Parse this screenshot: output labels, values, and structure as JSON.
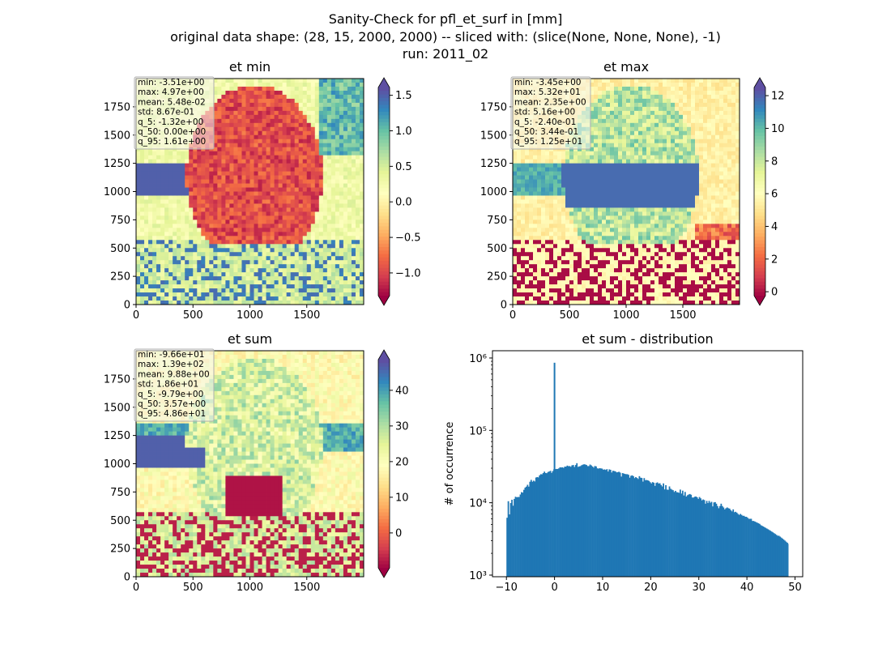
{
  "figure": {
    "suptitle_line1": "Sanity-Check for pfl_et_surf in [mm]",
    "suptitle_line2": "original data shape: (28, 15, 2000, 2000) -- sliced with: (slice(None, None, None), -1)",
    "suptitle_line3": "run: 2011_02"
  },
  "chart_data": [
    {
      "type": "heatmap",
      "title": "et min",
      "x_ticks": [
        0,
        500,
        1000,
        1500
      ],
      "y_ticks": [
        0,
        250,
        500,
        750,
        1000,
        1250,
        1500,
        1750
      ],
      "xlim": [
        0,
        2000
      ],
      "ylim": [
        0,
        2000
      ],
      "colormap": "Spectral",
      "colorbar": {
        "min": -1.32,
        "max": 1.61,
        "ticks": [
          "1.5",
          "1.0",
          "0.5",
          "0.0",
          "−0.5",
          "−1.0"
        ],
        "tick_values": [
          1.5,
          1.0,
          0.5,
          0.0,
          -0.5,
          -1.0
        ],
        "extend": "both"
      },
      "stats": [
        "min: -3.51e+00",
        "max: 4.97e+00",
        "mean: 5.48e-02",
        "std: 8.67e-01",
        "q_5: -1.32e+00",
        "q_50: 0.00e+00",
        "q_95: 1.61e+00"
      ]
    },
    {
      "type": "heatmap",
      "title": "et max",
      "x_ticks": [
        0,
        500,
        1000,
        1500
      ],
      "y_ticks": [
        0,
        250,
        500,
        750,
        1000,
        1250,
        1500,
        1750
      ],
      "xlim": [
        0,
        2000
      ],
      "ylim": [
        0,
        2000
      ],
      "colormap": "Spectral",
      "colorbar": {
        "min": -0.24,
        "max": 12.5,
        "ticks": [
          "12",
          "10",
          "8",
          "6",
          "4",
          "2",
          "0"
        ],
        "tick_values": [
          12,
          10,
          8,
          6,
          4,
          2,
          0
        ],
        "extend": "both"
      },
      "stats": [
        "min: -3.45e+00",
        "max: 5.32e+01",
        "mean: 2.35e+00",
        "std: 5.16e+00",
        "q_5: -2.40e-01",
        "q_50: 3.44e-01",
        "q_95: 1.25e+01"
      ]
    },
    {
      "type": "heatmap",
      "title": "et sum",
      "x_ticks": [
        0,
        500,
        1000,
        1500
      ],
      "y_ticks": [
        0,
        250,
        500,
        750,
        1000,
        1250,
        1500,
        1750
      ],
      "xlim": [
        0,
        2000
      ],
      "ylim": [
        0,
        2000
      ],
      "colormap": "Spectral",
      "colorbar": {
        "min": -9.79,
        "max": 48.6,
        "ticks": [
          "40",
          "30",
          "20",
          "10",
          "0"
        ],
        "tick_values": [
          40,
          30,
          20,
          10,
          0
        ],
        "extend": "both"
      },
      "stats": [
        "min: -9.66e+01",
        "max: 1.39e+02",
        "mean: 9.88e+00",
        "std: 1.86e+01",
        "q_5: -9.79e+00",
        "q_50: 3.57e+00",
        "q_95: 4.86e+01"
      ]
    },
    {
      "type": "bar",
      "title": "et sum - distribution",
      "ylabel": "# of occurrence",
      "xlabel": "",
      "log_y": true,
      "x_ticks": [
        -10,
        0,
        10,
        20,
        30,
        40,
        50
      ],
      "y_ticks": [
        "10³",
        "10⁴",
        "10⁵",
        "10⁶"
      ],
      "xlim": [
        -12.9,
        51.6
      ],
      "ylim": [
        950,
        1260000
      ],
      "bar_color": "#1f77b4",
      "bin_width": 0.25,
      "bin_start": -10,
      "bin_end": 48.6,
      "spike": {
        "x": 0,
        "count": 860000
      },
      "values": [
        6200,
        10500,
        6900,
        9900,
        11000,
        9100,
        11300,
        12100,
        11900,
        12000,
        12000,
        13000,
        14000,
        13800,
        15100,
        16200,
        16700,
        17700,
        16700,
        19500,
        20700,
        19500,
        20200,
        19700,
        22300,
        22600,
        22400,
        23900,
        24800,
        24700,
        25700,
        26900,
        25800,
        25600,
        26600,
        27000,
        27600,
        25900,
        27400,
        29000,
        29200,
        29300,
        29300,
        29800,
        30900,
        30700,
        30900,
        30300,
        31600,
        31500,
        32600,
        32000,
        32100,
        31400,
        32900,
        33200,
        31200,
        33200,
        35200,
        31300,
        31800,
        32100,
        33000,
        33600,
        34000,
        33800,
        33200,
        32100,
        32100,
        33700,
        32800,
        31700,
        30600,
        32200,
        31800,
        29900,
        29600,
        30000,
        29800,
        29600,
        28600,
        28900,
        28400,
        29100,
        27000,
        28900,
        28500,
        26200,
        27700,
        27400,
        27200,
        26300,
        26400,
        26800,
        26100,
        23000,
        25700,
        25300,
        25000,
        24800,
        24800,
        24300,
        22200,
        23600,
        23900,
        23300,
        21900,
        22600,
        22000,
        21300,
        23300,
        22200,
        22000,
        19600,
        21900,
        20500,
        20600,
        20400,
        20000,
        19200,
        18500,
        19300,
        18900,
        17100,
        18800,
        19100,
        18400,
        18600,
        17600,
        16800,
        18500,
        15300,
        17500,
        15200,
        15100,
        16800,
        15600,
        15200,
        14900,
        14100,
        14600,
        14000,
        13900,
        13700,
        15200,
        13400,
        14700,
        12600,
        14100,
        12200,
        12700,
        13000,
        13200,
        12900,
        11800,
        11800,
        12100,
        12200,
        11900,
        11300,
        12000,
        11500,
        10800,
        11100,
        10900,
        9700,
        10600,
        9900,
        10600,
        10000,
        10300,
        8900,
        10100,
        10200,
        9700,
        9000,
        8400,
        9000,
        9700,
        9000,
        8600,
        8100,
        8400,
        8600,
        8400,
        8300,
        7900,
        7600,
        8100,
        7400,
        7500,
        7300,
        7000,
        6800,
        7000,
        6800,
        6600,
        6600,
        6400,
        6400,
        6200,
        6000,
        6000,
        6000,
        5600,
        5600,
        5500,
        5400,
        5300,
        5200,
        5100,
        4900,
        4800,
        4700,
        4600,
        4500,
        4400,
        4300,
        4200,
        4100,
        4000,
        3900,
        3800,
        3700,
        3600,
        3500,
        3500,
        3400,
        3300,
        3200,
        3100,
        3000,
        2900,
        2800,
        2700,
        2600
      ]
    }
  ]
}
